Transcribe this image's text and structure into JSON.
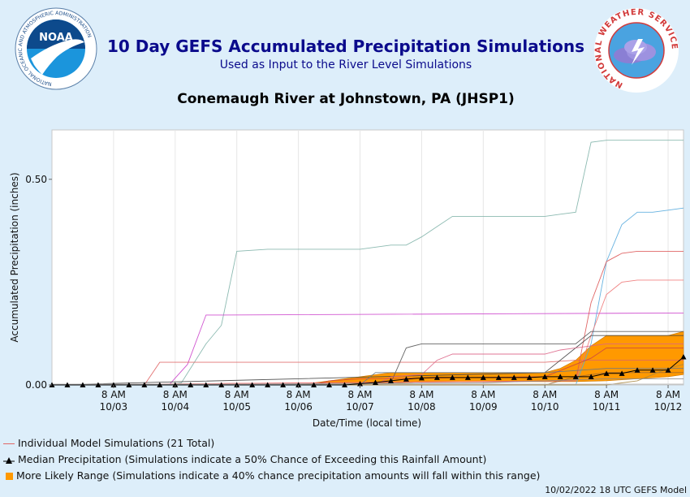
{
  "header": {
    "title": "10 Day GEFS Accumulated Precipitation Simulations",
    "subtitle": "Used as Input to the River Level Simulations",
    "location": "Conemaugh River at Johnstown, PA (JHSP1)"
  },
  "logos": {
    "left_ring": "NATIONAL OCEANIC AND ATMOSPHERIC ADMINISTRATION",
    "left_ring_bottom": "U.S. DEPARTMENT OF COMMERCE",
    "left_center": "NOAA",
    "right_ring": "NATIONAL WEATHER SERVICE"
  },
  "legend": {
    "members": "Individual Model Simulations (21 Total)",
    "median": "Median Precipitation (Simulations indicate a 50% Chance of Exceeding this Rainfall Amount)",
    "range": "More Likely Range (Simulations indicate a 40% chance precipitation amounts will fall within this range)"
  },
  "footer": "10/02/2022 18 UTC GEFS Model",
  "colors": {
    "background": "#ddeefa",
    "title": "#0b0b8c",
    "range_fill": "#ff9900",
    "median": "#000000",
    "member": "#e06666"
  },
  "chart_data": {
    "type": "line",
    "xlabel": "Date/Time (local time)",
    "ylabel": "Accumulated Precipitation (inches)",
    "x_ticks": [
      {
        "day": 1,
        "label1": "8 AM",
        "label2": "10/03"
      },
      {
        "day": 2,
        "label1": "8 AM",
        "label2": "10/04"
      },
      {
        "day": 3,
        "label1": "8 AM",
        "label2": "10/05"
      },
      {
        "day": 4,
        "label1": "8 AM",
        "label2": "10/06"
      },
      {
        "day": 5,
        "label1": "8 AM",
        "label2": "10/07"
      },
      {
        "day": 6,
        "label1": "8 AM",
        "label2": "10/08"
      },
      {
        "day": 7,
        "label1": "8 AM",
        "label2": "10/09"
      },
      {
        "day": 8,
        "label1": "8 AM",
        "label2": "10/10"
      },
      {
        "day": 9,
        "label1": "8 AM",
        "label2": "10/11"
      },
      {
        "day": 10,
        "label1": "8 AM",
        "label2": "10/12"
      }
    ],
    "y_ticks": [
      {
        "value": 0.0,
        "label": "0.00"
      },
      {
        "value": 0.5,
        "label": "0.50"
      }
    ],
    "xlim": [
      0.0,
      10.25
    ],
    "ylim": [
      0,
      0.62
    ],
    "range_band": {
      "x": [
        4.0,
        5.0,
        5.5,
        6.0,
        6.5,
        7.0,
        7.5,
        8.0,
        8.25,
        8.5,
        8.75,
        9.0,
        9.5,
        10.0,
        10.25
      ],
      "lower": [
        0.0,
        0.0,
        0.005,
        0.007,
        0.008,
        0.008,
        0.008,
        0.008,
        0.008,
        0.008,
        0.009,
        0.01,
        0.015,
        0.02,
        0.025
      ],
      "upper": [
        0.0,
        0.02,
        0.03,
        0.03,
        0.03,
        0.03,
        0.03,
        0.03,
        0.04,
        0.06,
        0.095,
        0.12,
        0.12,
        0.12,
        0.13
      ]
    },
    "median": {
      "x": [
        0.0,
        0.25,
        0.5,
        0.75,
        1.0,
        1.25,
        1.5,
        1.75,
        2.0,
        2.25,
        2.5,
        2.75,
        3.0,
        3.25,
        3.5,
        3.75,
        4.0,
        4.25,
        4.5,
        4.75,
        5.0,
        5.25,
        5.5,
        5.75,
        6.0,
        6.25,
        6.5,
        6.75,
        7.0,
        7.25,
        7.5,
        7.75,
        8.0,
        8.25,
        8.5,
        8.75,
        9.0,
        9.25,
        9.5,
        9.75,
        10.0,
        10.25
      ],
      "y": [
        0,
        0,
        0,
        0,
        0,
        0,
        0,
        0,
        0,
        0,
        0,
        0,
        0,
        0,
        0,
        0,
        0,
        0,
        0,
        0,
        0.003,
        0.006,
        0.01,
        0.014,
        0.017,
        0.018,
        0.018,
        0.018,
        0.018,
        0.018,
        0.018,
        0.018,
        0.02,
        0.02,
        0.02,
        0.02,
        0.028,
        0.028,
        0.036,
        0.036,
        0.036,
        0.068
      ]
    },
    "series": [
      {
        "color": "#7fb3a8",
        "x": [
          0,
          1.9,
          2.1,
          2.5,
          2.75,
          3.0,
          3.5,
          4.5,
          5.0,
          5.5,
          5.75,
          6.0,
          6.25,
          6.5,
          7.0,
          8.0,
          8.25,
          8.5,
          8.75,
          9.0,
          10.25
        ],
        "y": [
          0,
          0,
          0.005,
          0.1,
          0.145,
          0.325,
          0.33,
          0.33,
          0.33,
          0.34,
          0.34,
          0.36,
          0.385,
          0.41,
          0.41,
          0.41,
          0.415,
          0.42,
          0.59,
          0.595,
          0.595
        ]
      },
      {
        "color": "#cc44cc",
        "x": [
          0,
          1.9,
          2.2,
          2.5,
          2.75,
          10.25
        ],
        "y": [
          0,
          0,
          0.05,
          0.17,
          0.17,
          0.175
        ]
      },
      {
        "color": "#e06666",
        "x": [
          0,
          1.5,
          1.75,
          2.75,
          5.0,
          7.0,
          8.0,
          8.5,
          10.25
        ],
        "y": [
          0,
          0,
          0.055,
          0.055,
          0.055,
          0.055,
          0.055,
          0.06,
          0.06
        ]
      },
      {
        "color": "#55aadd",
        "x": [
          0,
          8.5,
          8.75,
          9.0,
          9.25,
          9.5,
          9.75,
          10.0,
          10.25
        ],
        "y": [
          0,
          0,
          0.1,
          0.3,
          0.39,
          0.42,
          0.42,
          0.425,
          0.43
        ]
      },
      {
        "color": "#dd5555",
        "x": [
          0,
          8.5,
          8.75,
          9.0,
          9.25,
          9.5,
          10.25
        ],
        "y": [
          0,
          0.01,
          0.2,
          0.3,
          0.32,
          0.325,
          0.325
        ]
      },
      {
        "color": "#ee7777",
        "x": [
          0,
          8.5,
          8.75,
          9.0,
          9.25,
          9.5,
          10.25
        ],
        "y": [
          0,
          0.01,
          0.12,
          0.22,
          0.25,
          0.255,
          0.255
        ]
      },
      {
        "color": "#555555",
        "x": [
          0,
          5.25,
          5.5,
          5.75,
          6.0,
          8.5,
          8.75,
          10.25
        ],
        "y": [
          0,
          0,
          0.005,
          0.09,
          0.1,
          0.1,
          0.13,
          0.13
        ]
      },
      {
        "color": "#444444",
        "x": [
          0,
          8.0,
          8.5,
          8.75,
          9.0,
          10.25
        ],
        "y": [
          0,
          0.03,
          0.09,
          0.12,
          0.12,
          0.12
        ]
      },
      {
        "color": "#dd6688",
        "x": [
          0,
          5.25,
          5.5,
          6.0,
          6.25,
          6.5,
          7.0,
          8.0,
          8.25,
          8.5,
          8.75,
          9.0,
          10.25
        ],
        "y": [
          0,
          0,
          0.02,
          0.025,
          0.06,
          0.075,
          0.075,
          0.075,
          0.085,
          0.09,
          0.095,
          0.1,
          0.1
        ]
      },
      {
        "color": "#cc4444",
        "x": [
          0,
          4.25,
          4.5,
          5.0,
          8.0,
          8.5,
          8.75,
          9.0,
          10.25
        ],
        "y": [
          0,
          0,
          0.01,
          0.015,
          0.02,
          0.05,
          0.065,
          0.09,
          0.09
        ]
      },
      {
        "color": "#667788",
        "x": [
          0,
          5.0,
          5.25,
          6.0,
          8.0,
          8.5,
          9.0,
          10.25
        ],
        "y": [
          0,
          0,
          0.03,
          0.03,
          0.03,
          0.035,
          0.04,
          0.04
        ]
      },
      {
        "color": "#996633",
        "x": [
          0,
          8.0,
          8.5,
          9.0,
          10.25
        ],
        "y": [
          0,
          0,
          0.02,
          0.03,
          0.03
        ]
      },
      {
        "color": "#aa8844",
        "x": [
          0,
          9.0,
          9.5,
          10.0,
          10.25
        ],
        "y": [
          0,
          0,
          0.01,
          0.04,
          0.05
        ]
      },
      {
        "color": "#888888",
        "x": [
          0,
          7.0,
          8.0,
          9.0,
          10.25
        ],
        "y": [
          0,
          0.005,
          0.01,
          0.015,
          0.015
        ]
      },
      {
        "color": "#bbbbbb",
        "x": [
          0,
          10.25
        ],
        "y": [
          0.002,
          0.002
        ]
      }
    ]
  }
}
